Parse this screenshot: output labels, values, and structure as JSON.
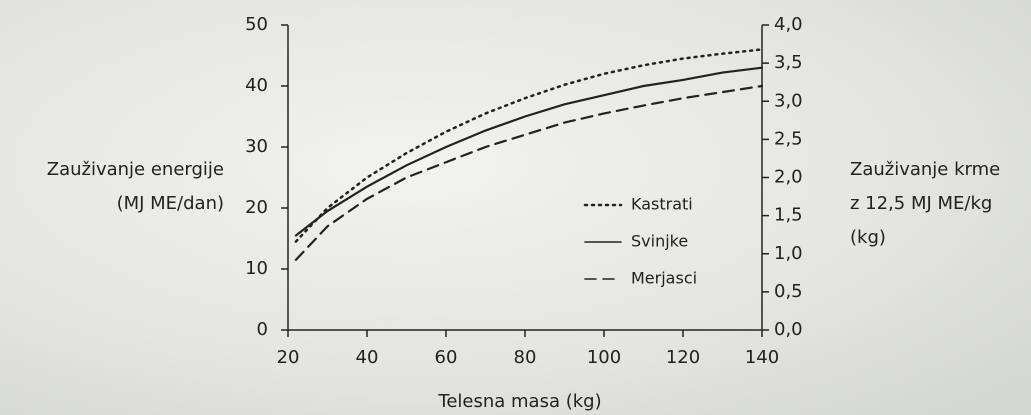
{
  "chart_data": {
    "type": "line",
    "xlabel": "Telesna masa (kg)",
    "ylabel": [
      "Zauživanje energije",
      "(MJ ME/dan)"
    ],
    "y2label": [
      "Zauživanje krme",
      "z 12,5 MJ ME/kg",
      "(kg)"
    ],
    "x": [
      22,
      30,
      40,
      50,
      60,
      70,
      80,
      90,
      100,
      110,
      120,
      130,
      140
    ],
    "series": [
      {
        "name": "Kastrati",
        "color": "#222222",
        "dash": "dotted",
        "values": [
          14.5,
          20,
          25,
          29,
          32.5,
          35.5,
          38,
          40.2,
          42,
          43.4,
          44.5,
          45.3,
          46
        ]
      },
      {
        "name": "Svinjke",
        "color": "#222222",
        "dash": "solid",
        "values": [
          15.5,
          19.5,
          23.5,
          27,
          30,
          32.7,
          35,
          37,
          38.5,
          40,
          41,
          42.2,
          43
        ]
      },
      {
        "name": "Merjasci",
        "color": "#222222",
        "dash": "dashed",
        "values": [
          11.5,
          17,
          21.5,
          25,
          27.5,
          30,
          32,
          34,
          35.5,
          36.8,
          38,
          39,
          40
        ]
      }
    ],
    "xlim": [
      20,
      140
    ],
    "xticks": [
      20,
      40,
      60,
      80,
      100,
      120,
      140
    ],
    "ylim": [
      0,
      50
    ],
    "yticks": [
      0,
      10,
      20,
      30,
      40,
      50
    ],
    "y2lim": [
      0,
      4
    ],
    "y2ticks": [
      {
        "value": 0,
        "label": "0,0"
      },
      {
        "value": 0.5,
        "label": "0,5"
      },
      {
        "value": 1,
        "label": "1,0"
      },
      {
        "value": 1.5,
        "label": "1,5"
      },
      {
        "value": 2,
        "label": "2,0"
      },
      {
        "value": 2.5,
        "label": "2,5"
      },
      {
        "value": 3,
        "label": "3,0"
      },
      {
        "value": 3.5,
        "label": "3,5"
      },
      {
        "value": 4,
        "label": "4,0"
      }
    ],
    "legend": "lower right",
    "grid": false
  }
}
